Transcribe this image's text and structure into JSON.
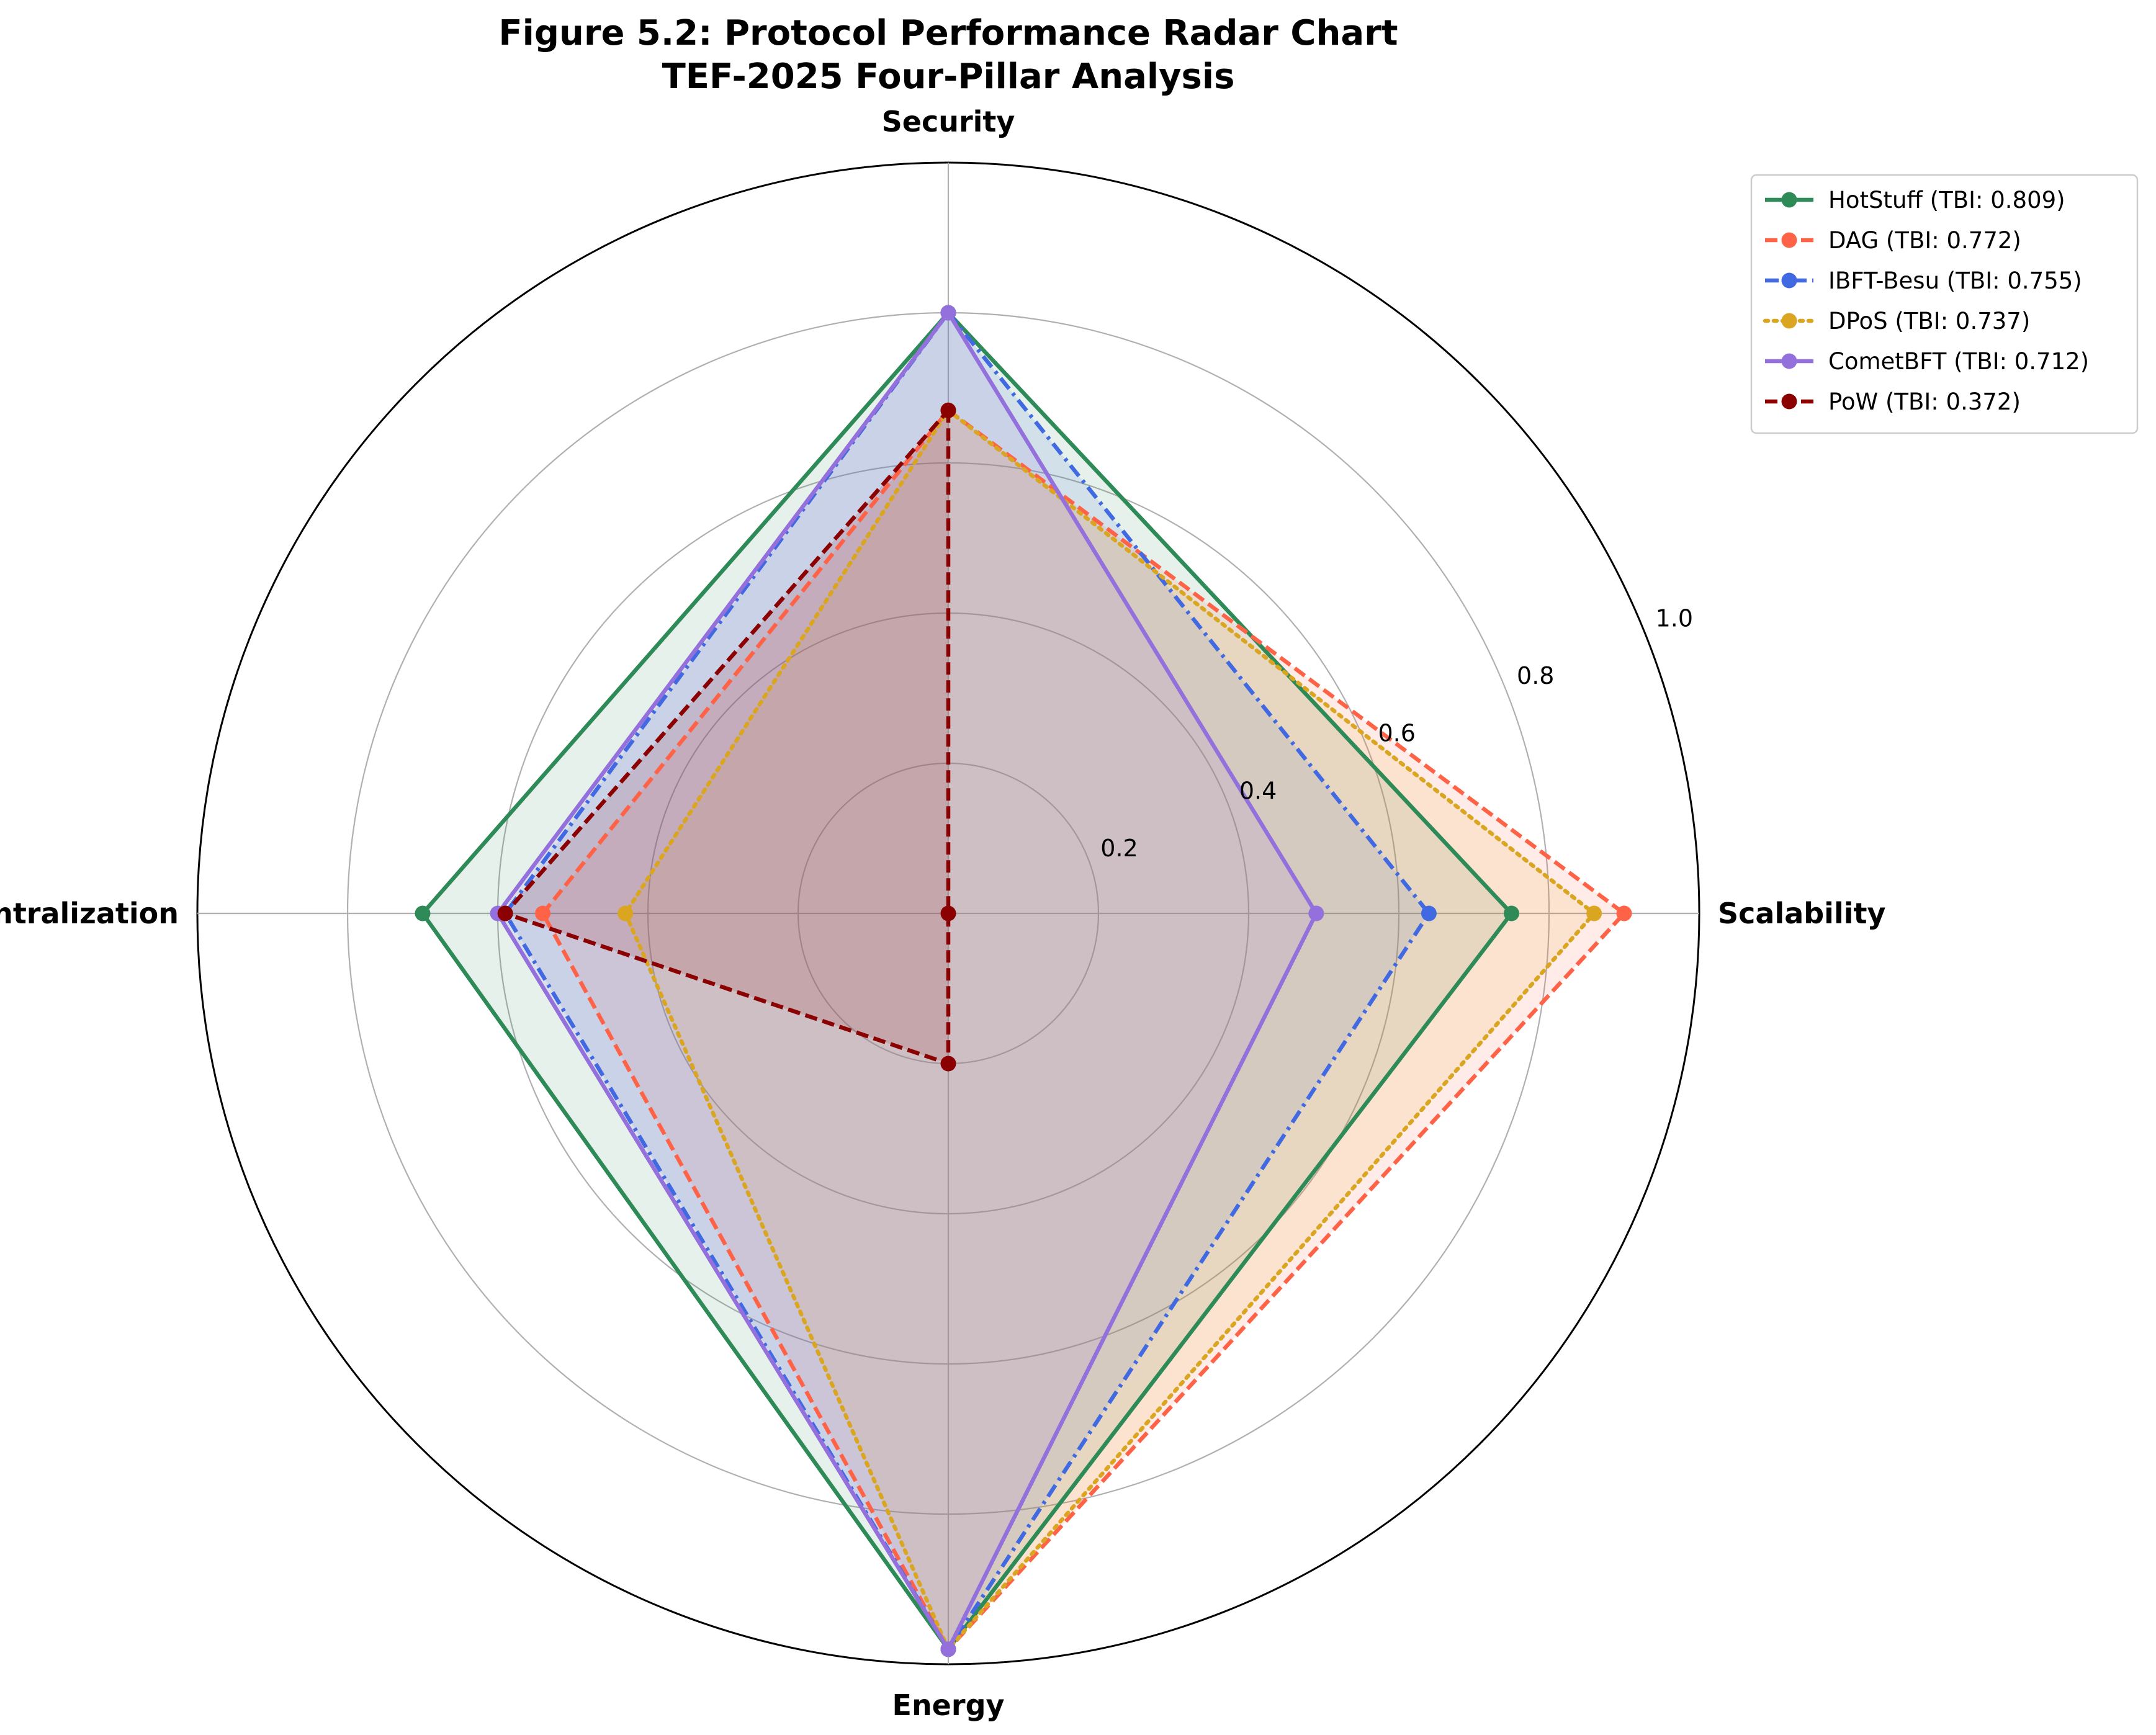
{
  "chart_data": {
    "type": "radar",
    "title": "Figure 5.2: Protocol Performance Radar Chart",
    "subtitle": "TEF-2025 Four-Pillar Analysis",
    "axes": [
      "Security",
      "Scalability",
      "Energy",
      "Decentralization"
    ],
    "rlim": [
      0,
      1.0
    ],
    "r_ticks": [
      0.2,
      0.4,
      0.6,
      0.8,
      1.0
    ],
    "r_tick_labels": [
      "0.2",
      "0.4",
      "0.6",
      "0.8",
      "1.0"
    ],
    "grid": true,
    "legend_position": "top-right, outside plot",
    "series": [
      {
        "name": "HotStuff (TBI: 0.809)",
        "values": [
          0.8,
          0.75,
          0.98,
          0.7
        ],
        "color": "#2e8b57",
        "linestyle": "solid"
      },
      {
        "name": "DAG (TBI: 0.772)",
        "values": [
          0.67,
          0.9,
          0.98,
          0.54
        ],
        "color": "#ff6347",
        "linestyle": "dashed"
      },
      {
        "name": "IBFT-Besu (TBI: 0.755)",
        "values": [
          0.8,
          0.64,
          0.98,
          0.59
        ],
        "color": "#4169e1",
        "linestyle": "dashdot"
      },
      {
        "name": "DPoS (TBI: 0.737)",
        "values": [
          0.67,
          0.86,
          0.98,
          0.43
        ],
        "color": "#daa520",
        "linestyle": "dotted"
      },
      {
        "name": "CometBFT (TBI: 0.712)",
        "values": [
          0.8,
          0.49,
          0.98,
          0.6
        ],
        "color": "#9370db",
        "linestyle": "solid"
      },
      {
        "name": "PoW (TBI: 0.372)",
        "values": [
          0.67,
          0.0,
          0.2,
          0.59
        ],
        "color": "#8b0000",
        "linestyle": "dashed"
      }
    ]
  }
}
